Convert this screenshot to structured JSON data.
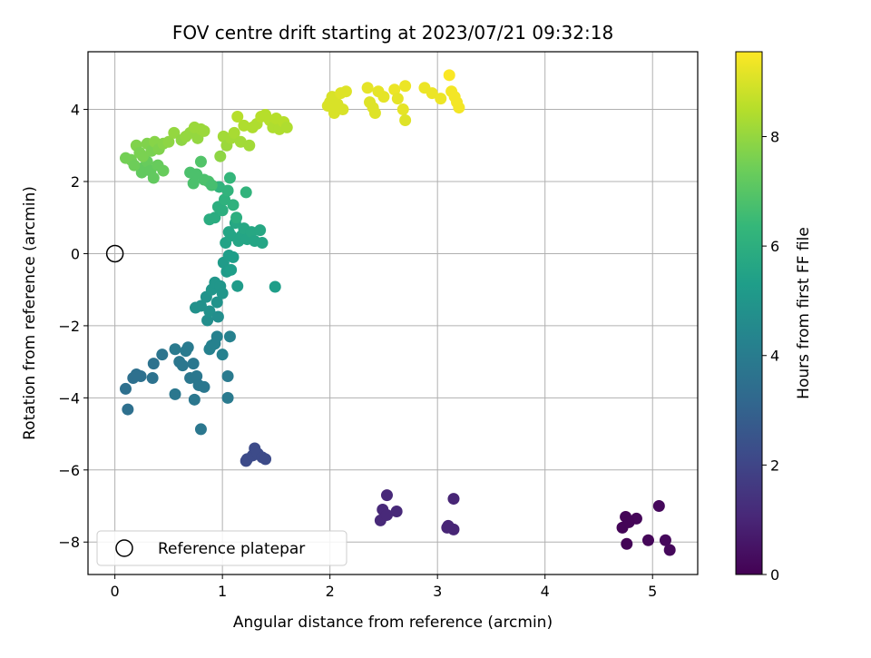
{
  "chart_data": {
    "type": "scatter",
    "title": "FOV centre drift starting at 2023/07/21 09:32:18",
    "xlabel": "Angular distance from reference (arcmin)",
    "ylabel": "Rotation from reference (arcmin)",
    "colorbar_label": "Hours from first FF file",
    "xlim": [
      -0.25,
      5.42
    ],
    "ylim": [
      -8.9,
      5.6
    ],
    "xticks": [
      0,
      1,
      2,
      3,
      4,
      5
    ],
    "yticks": [
      -8,
      -6,
      -4,
      -2,
      0,
      2,
      4
    ],
    "colorbar_ticks": [
      0,
      2,
      4,
      6,
      8
    ],
    "colorbar_range": [
      0,
      9.55
    ],
    "grid": true,
    "legend": {
      "label": "Reference platepar",
      "location": "lower-left"
    },
    "reference_point": {
      "x": 0,
      "y": 0
    },
    "colormap": [
      "#440154",
      "#482878",
      "#3e4989",
      "#31688e",
      "#26828e",
      "#1f9e89",
      "#35b779",
      "#6ece58",
      "#b5de2b",
      "#fde725"
    ],
    "points": [
      {
        "x": 4.72,
        "y": -7.6,
        "t": 0.1
      },
      {
        "x": 4.75,
        "y": -7.3,
        "t": 0.1
      },
      {
        "x": 4.76,
        "y": -8.05,
        "t": 0.1
      },
      {
        "x": 4.85,
        "y": -7.35,
        "t": 0.15
      },
      {
        "x": 4.78,
        "y": -7.45,
        "t": 0.1
      },
      {
        "x": 4.96,
        "y": -7.95,
        "t": 0.15
      },
      {
        "x": 5.06,
        "y": -7.0,
        "t": 0.2
      },
      {
        "x": 5.12,
        "y": -7.95,
        "t": 0.2
      },
      {
        "x": 5.16,
        "y": -8.22,
        "t": 0.2
      },
      {
        "x": 2.53,
        "y": -6.7,
        "t": 1.1
      },
      {
        "x": 2.49,
        "y": -7.1,
        "t": 1.1
      },
      {
        "x": 2.47,
        "y": -7.4,
        "t": 1.1
      },
      {
        "x": 2.53,
        "y": -7.25,
        "t": 1.1
      },
      {
        "x": 2.62,
        "y": -7.15,
        "t": 1.1
      },
      {
        "x": 3.09,
        "y": -7.6,
        "t": 1.0
      },
      {
        "x": 3.15,
        "y": -6.8,
        "t": 1.0
      },
      {
        "x": 3.15,
        "y": -7.65,
        "t": 1.0
      },
      {
        "x": 3.1,
        "y": -7.55,
        "t": 1.0
      },
      {
        "x": 1.22,
        "y": -5.75,
        "t": 2.2
      },
      {
        "x": 1.23,
        "y": -5.7,
        "t": 2.2
      },
      {
        "x": 1.28,
        "y": -5.6,
        "t": 2.2
      },
      {
        "x": 1.3,
        "y": -5.4,
        "t": 2.2
      },
      {
        "x": 1.33,
        "y": -5.55,
        "t": 2.2
      },
      {
        "x": 1.37,
        "y": -5.65,
        "t": 2.2
      },
      {
        "x": 1.4,
        "y": -5.7,
        "t": 2.2
      },
      {
        "x": 0.1,
        "y": -3.75,
        "t": 3.5
      },
      {
        "x": 0.12,
        "y": -4.32,
        "t": 3.5
      },
      {
        "x": 0.17,
        "y": -3.45,
        "t": 3.5
      },
      {
        "x": 0.2,
        "y": -3.35,
        "t": 3.5
      },
      {
        "x": 0.24,
        "y": -3.4,
        "t": 3.5
      },
      {
        "x": 0.35,
        "y": -3.45,
        "t": 3.6
      },
      {
        "x": 0.36,
        "y": -3.05,
        "t": 3.6
      },
      {
        "x": 0.44,
        "y": -2.8,
        "t": 3.7
      },
      {
        "x": 0.56,
        "y": -2.65,
        "t": 3.9
      },
      {
        "x": 0.56,
        "y": -3.9,
        "t": 3.8
      },
      {
        "x": 0.6,
        "y": -3.0,
        "t": 3.8
      },
      {
        "x": 0.63,
        "y": -3.1,
        "t": 3.8
      },
      {
        "x": 0.66,
        "y": -2.7,
        "t": 3.9
      },
      {
        "x": 0.68,
        "y": -2.6,
        "t": 3.9
      },
      {
        "x": 0.7,
        "y": -3.45,
        "t": 3.8
      },
      {
        "x": 0.73,
        "y": -3.05,
        "t": 3.8
      },
      {
        "x": 0.74,
        "y": -4.05,
        "t": 3.8
      },
      {
        "x": 0.76,
        "y": -3.4,
        "t": 3.8
      },
      {
        "x": 0.78,
        "y": -3.65,
        "t": 3.8
      },
      {
        "x": 0.8,
        "y": -4.87,
        "t": 3.8
      },
      {
        "x": 0.83,
        "y": -3.7,
        "t": 3.8
      },
      {
        "x": 0.88,
        "y": -2.65,
        "t": 4.2
      },
      {
        "x": 0.9,
        "y": -2.55,
        "t": 4.2
      },
      {
        "x": 0.93,
        "y": -2.5,
        "t": 4.2
      },
      {
        "x": 0.95,
        "y": -2.3,
        "t": 4.2
      },
      {
        "x": 1.0,
        "y": -2.8,
        "t": 4.2
      },
      {
        "x": 1.05,
        "y": -3.4,
        "t": 3.9
      },
      {
        "x": 1.05,
        "y": -4.0,
        "t": 3.9
      },
      {
        "x": 1.07,
        "y": -2.3,
        "t": 4.2
      },
      {
        "x": 0.75,
        "y": -1.5,
        "t": 4.8
      },
      {
        "x": 0.8,
        "y": -1.45,
        "t": 4.8
      },
      {
        "x": 0.85,
        "y": -1.2,
        "t": 4.9
      },
      {
        "x": 0.86,
        "y": -1.85,
        "t": 4.7
      },
      {
        "x": 0.88,
        "y": -1.6,
        "t": 4.8
      },
      {
        "x": 0.9,
        "y": -1.0,
        "t": 5.0
      },
      {
        "x": 0.93,
        "y": -0.8,
        "t": 5.0
      },
      {
        "x": 0.95,
        "y": -1.35,
        "t": 4.9
      },
      {
        "x": 0.96,
        "y": -1.75,
        "t": 4.7
      },
      {
        "x": 0.98,
        "y": -0.9,
        "t": 5.0
      },
      {
        "x": 1.0,
        "y": -1.1,
        "t": 5.0
      },
      {
        "x": 1.01,
        "y": -0.25,
        "t": 5.2
      },
      {
        "x": 1.04,
        "y": -0.5,
        "t": 5.2
      },
      {
        "x": 1.06,
        "y": -0.05,
        "t": 5.3
      },
      {
        "x": 1.08,
        "y": -0.45,
        "t": 5.3
      },
      {
        "x": 1.1,
        "y": -0.1,
        "t": 5.3
      },
      {
        "x": 1.14,
        "y": -0.9,
        "t": 5.2
      },
      {
        "x": 1.49,
        "y": -0.92,
        "t": 5.3
      },
      {
        "x": 1.03,
        "y": 0.3,
        "t": 5.5
      },
      {
        "x": 1.06,
        "y": 0.6,
        "t": 5.6
      },
      {
        "x": 1.08,
        "y": 0.5,
        "t": 5.6
      },
      {
        "x": 1.12,
        "y": 0.85,
        "t": 5.7
      },
      {
        "x": 1.15,
        "y": 0.35,
        "t": 5.6
      },
      {
        "x": 1.18,
        "y": 0.5,
        "t": 5.6
      },
      {
        "x": 1.2,
        "y": 0.7,
        "t": 5.7
      },
      {
        "x": 1.23,
        "y": 0.4,
        "t": 5.6
      },
      {
        "x": 1.27,
        "y": 0.6,
        "t": 5.7
      },
      {
        "x": 1.3,
        "y": 0.35,
        "t": 5.6
      },
      {
        "x": 1.35,
        "y": 0.65,
        "t": 5.7
      },
      {
        "x": 1.37,
        "y": 0.3,
        "t": 5.6
      },
      {
        "x": 0.88,
        "y": 0.95,
        "t": 5.9
      },
      {
        "x": 0.93,
        "y": 1.0,
        "t": 5.9
      },
      {
        "x": 0.96,
        "y": 1.3,
        "t": 6.0
      },
      {
        "x": 1.0,
        "y": 1.2,
        "t": 6.0
      },
      {
        "x": 1.02,
        "y": 1.5,
        "t": 6.1
      },
      {
        "x": 1.05,
        "y": 1.75,
        "t": 6.2
      },
      {
        "x": 1.07,
        "y": 2.1,
        "t": 6.3
      },
      {
        "x": 1.1,
        "y": 1.35,
        "t": 6.1
      },
      {
        "x": 1.13,
        "y": 1.0,
        "t": 6.0
      },
      {
        "x": 1.22,
        "y": 1.7,
        "t": 6.2
      },
      {
        "x": 0.97,
        "y": 1.85,
        "t": 6.2
      },
      {
        "x": 0.7,
        "y": 2.25,
        "t": 6.8
      },
      {
        "x": 0.73,
        "y": 1.95,
        "t": 6.8
      },
      {
        "x": 0.76,
        "y": 2.2,
        "t": 6.8
      },
      {
        "x": 0.8,
        "y": 2.55,
        "t": 6.9
      },
      {
        "x": 0.83,
        "y": 2.05,
        "t": 6.8
      },
      {
        "x": 0.87,
        "y": 2.0,
        "t": 6.8
      },
      {
        "x": 0.9,
        "y": 1.9,
        "t": 6.7
      },
      {
        "x": 0.25,
        "y": 2.25,
        "t": 7.2
      },
      {
        "x": 0.27,
        "y": 2.4,
        "t": 7.2
      },
      {
        "x": 0.3,
        "y": 2.55,
        "t": 7.3
      },
      {
        "x": 0.33,
        "y": 2.3,
        "t": 7.2
      },
      {
        "x": 0.36,
        "y": 2.1,
        "t": 7.2
      },
      {
        "x": 0.4,
        "y": 2.45,
        "t": 7.3
      },
      {
        "x": 0.45,
        "y": 2.3,
        "t": 7.3
      },
      {
        "x": 0.1,
        "y": 2.65,
        "t": 7.5
      },
      {
        "x": 0.15,
        "y": 2.6,
        "t": 7.5
      },
      {
        "x": 0.18,
        "y": 2.45,
        "t": 7.4
      },
      {
        "x": 0.2,
        "y": 3.0,
        "t": 7.7
      },
      {
        "x": 0.23,
        "y": 2.8,
        "t": 7.6
      },
      {
        "x": 0.26,
        "y": 2.7,
        "t": 7.6
      },
      {
        "x": 0.3,
        "y": 3.05,
        "t": 7.7
      },
      {
        "x": 0.34,
        "y": 2.85,
        "t": 7.6
      },
      {
        "x": 0.37,
        "y": 3.1,
        "t": 7.8
      },
      {
        "x": 0.41,
        "y": 2.9,
        "t": 7.7
      },
      {
        "x": 0.45,
        "y": 3.05,
        "t": 7.8
      },
      {
        "x": 0.5,
        "y": 3.1,
        "t": 7.9
      },
      {
        "x": 0.55,
        "y": 3.35,
        "t": 8.0
      },
      {
        "x": 0.62,
        "y": 3.15,
        "t": 7.9
      },
      {
        "x": 0.66,
        "y": 3.25,
        "t": 8.0
      },
      {
        "x": 0.7,
        "y": 3.35,
        "t": 8.0
      },
      {
        "x": 0.74,
        "y": 3.5,
        "t": 8.1
      },
      {
        "x": 0.77,
        "y": 3.2,
        "t": 8.0
      },
      {
        "x": 0.8,
        "y": 3.45,
        "t": 8.1
      },
      {
        "x": 0.83,
        "y": 3.4,
        "t": 8.1
      },
      {
        "x": 0.98,
        "y": 2.7,
        "t": 7.9
      },
      {
        "x": 1.01,
        "y": 3.25,
        "t": 8.2
      },
      {
        "x": 1.04,
        "y": 3.0,
        "t": 8.1
      },
      {
        "x": 1.08,
        "y": 3.2,
        "t": 8.2
      },
      {
        "x": 1.11,
        "y": 3.35,
        "t": 8.3
      },
      {
        "x": 1.14,
        "y": 3.8,
        "t": 8.5
      },
      {
        "x": 1.17,
        "y": 3.1,
        "t": 8.2
      },
      {
        "x": 1.2,
        "y": 3.55,
        "t": 8.4
      },
      {
        "x": 1.25,
        "y": 3.0,
        "t": 8.2
      },
      {
        "x": 1.28,
        "y": 3.5,
        "t": 8.4
      },
      {
        "x": 1.32,
        "y": 3.6,
        "t": 8.4
      },
      {
        "x": 1.36,
        "y": 3.8,
        "t": 8.5
      },
      {
        "x": 1.4,
        "y": 3.85,
        "t": 8.5
      },
      {
        "x": 1.44,
        "y": 3.7,
        "t": 8.5
      },
      {
        "x": 1.47,
        "y": 3.5,
        "t": 8.4
      },
      {
        "x": 1.5,
        "y": 3.75,
        "t": 8.5
      },
      {
        "x": 1.53,
        "y": 3.45,
        "t": 8.4
      },
      {
        "x": 1.57,
        "y": 3.65,
        "t": 8.5
      },
      {
        "x": 1.6,
        "y": 3.5,
        "t": 8.4
      },
      {
        "x": 1.98,
        "y": 4.1,
        "t": 9.0
      },
      {
        "x": 2.0,
        "y": 4.2,
        "t": 9.0
      },
      {
        "x": 2.02,
        "y": 4.35,
        "t": 9.0
      },
      {
        "x": 2.04,
        "y": 3.9,
        "t": 9.0
      },
      {
        "x": 2.07,
        "y": 4.15,
        "t": 9.0
      },
      {
        "x": 2.1,
        "y": 4.45,
        "t": 9.1
      },
      {
        "x": 2.12,
        "y": 4.0,
        "t": 9.0
      },
      {
        "x": 2.15,
        "y": 4.5,
        "t": 9.1
      },
      {
        "x": 2.35,
        "y": 4.6,
        "t": 9.2
      },
      {
        "x": 2.37,
        "y": 4.2,
        "t": 9.1
      },
      {
        "x": 2.4,
        "y": 4.05,
        "t": 9.1
      },
      {
        "x": 2.42,
        "y": 3.9,
        "t": 9.1
      },
      {
        "x": 2.45,
        "y": 4.5,
        "t": 9.2
      },
      {
        "x": 2.5,
        "y": 4.35,
        "t": 9.2
      },
      {
        "x": 2.6,
        "y": 4.55,
        "t": 9.3
      },
      {
        "x": 2.63,
        "y": 4.3,
        "t": 9.2
      },
      {
        "x": 2.68,
        "y": 4.0,
        "t": 9.2
      },
      {
        "x": 2.7,
        "y": 4.65,
        "t": 9.3
      },
      {
        "x": 2.7,
        "y": 3.7,
        "t": 9.1
      },
      {
        "x": 2.88,
        "y": 4.6,
        "t": 9.3
      },
      {
        "x": 2.95,
        "y": 4.45,
        "t": 9.3
      },
      {
        "x": 3.03,
        "y": 4.3,
        "t": 9.3
      },
      {
        "x": 3.11,
        "y": 4.95,
        "t": 9.5
      },
      {
        "x": 3.13,
        "y": 4.5,
        "t": 9.4
      },
      {
        "x": 3.16,
        "y": 4.35,
        "t": 9.4
      },
      {
        "x": 3.18,
        "y": 4.2,
        "t": 9.4
      },
      {
        "x": 3.2,
        "y": 4.05,
        "t": 9.4
      }
    ]
  }
}
